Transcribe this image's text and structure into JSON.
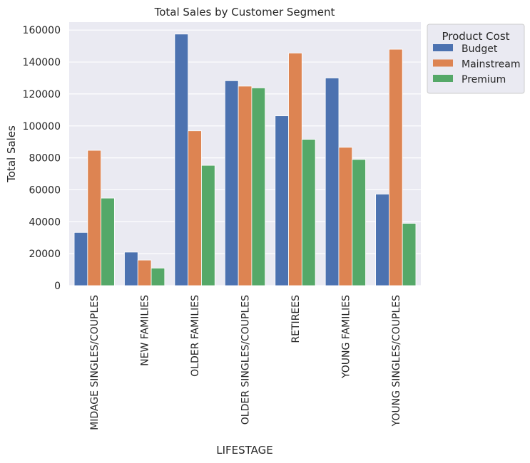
{
  "chart_data": {
    "type": "bar",
    "title": "Total Sales by Customer Segment",
    "xlabel": "LIFESTAGE",
    "ylabel": "Total Sales",
    "ylim": [
      0,
      165000
    ],
    "yticks": [
      0,
      20000,
      40000,
      60000,
      80000,
      100000,
      120000,
      140000,
      160000
    ],
    "grid": true,
    "categories": [
      "MIDAGE SINGLES/COUPLES",
      "NEW FAMILIES",
      "OLDER FAMILIES",
      "OLDER SINGLES/COUPLES",
      "RETIREES",
      "YOUNG FAMILIES",
      "YOUNG SINGLES/COUPLES"
    ],
    "legend": {
      "title": "Product Cost",
      "placement": "outside-upper-right"
    },
    "series": [
      {
        "name": "Budget",
        "color": "#4c72b0",
        "values": [
          33300,
          21000,
          157500,
          128300,
          106300,
          130000,
          57300
        ]
      },
      {
        "name": "Mainstream",
        "color": "#dd8452",
        "values": [
          84700,
          16000,
          96900,
          124900,
          145600,
          86600,
          148000
        ]
      },
      {
        "name": "Premium",
        "color": "#55a868",
        "values": [
          54800,
          11000,
          75300,
          123800,
          91600,
          79000,
          39000
        ]
      }
    ]
  }
}
